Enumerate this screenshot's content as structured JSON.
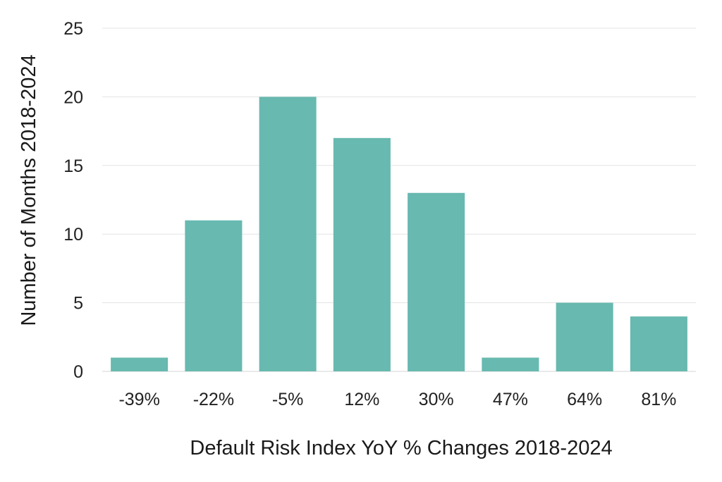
{
  "chart_data": {
    "type": "bar",
    "title": "",
    "xlabel": "Default Risk Index YoY % Changes 2018-2024",
    "ylabel": "Number of Months 2018-2024",
    "categories": [
      "-39%",
      "-22%",
      "-5%",
      "12%",
      "30%",
      "47%",
      "64%",
      "81%"
    ],
    "values": [
      1,
      11,
      20,
      17,
      13,
      1,
      5,
      4
    ],
    "ylim": [
      0,
      25
    ],
    "yticks": [
      "0",
      "5",
      "10",
      "15",
      "20",
      "25"
    ],
    "grid": true,
    "legend": "none",
    "bar_color": "#68b9b0",
    "grid_color": "#e3e3e3"
  }
}
